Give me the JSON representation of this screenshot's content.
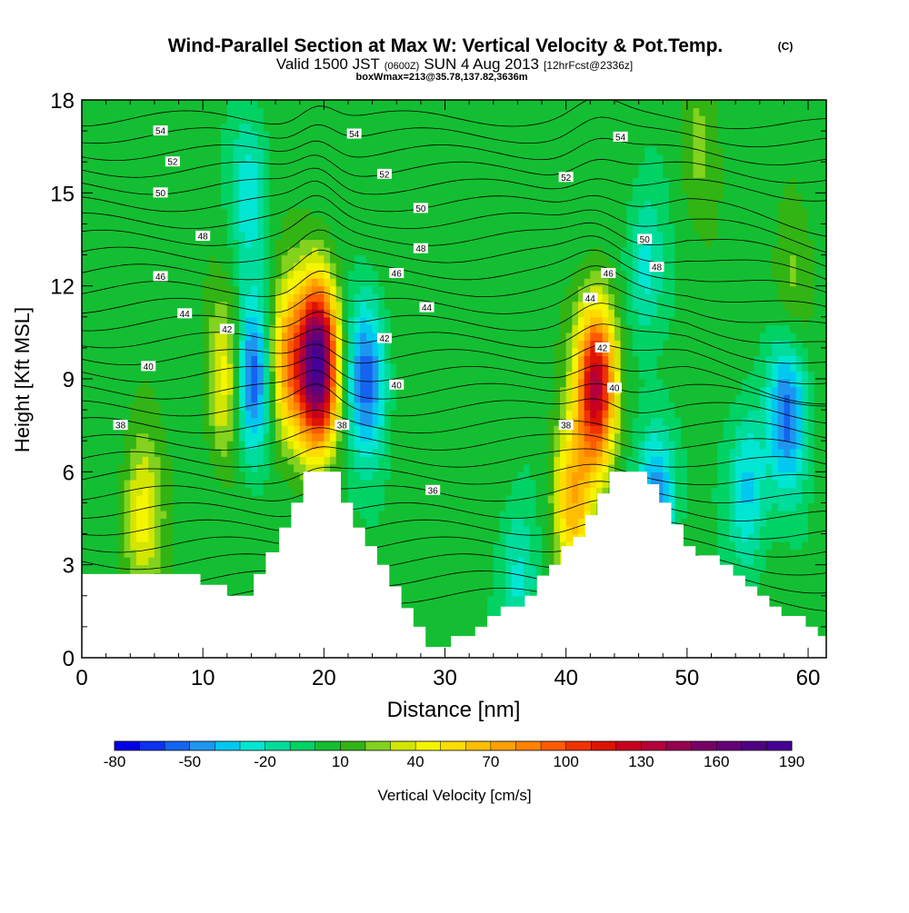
{
  "title": {
    "main": "Wind-Parallel Section at Max W: Vertical Velocity & Pot.Temp.",
    "copyright": "(C)",
    "valid_prefix": "Valid 1500 JST",
    "valid_zulu": "(0600Z)",
    "valid_date": "SUN 4 Aug 2013",
    "forecast": "[12hrFcst@2336z]",
    "boxwmax": "boxWmax=213@35.78,137.82,3636m"
  },
  "chart_data": {
    "type": "heatmap",
    "xlabel": "Distance [nm]",
    "ylabel": "Height [Kft MSL]",
    "xlim": [
      0,
      61.5
    ],
    "ylim": [
      0,
      18
    ],
    "xticks": [
      0,
      10,
      20,
      30,
      40,
      50,
      60
    ],
    "yticks": [
      0,
      3,
      6,
      9,
      12,
      15,
      18
    ],
    "field": "Vertical Velocity [cm/s]",
    "colorbar": {
      "label": "Vertical Velocity [cm/s]",
      "min": -80,
      "max": 190,
      "step": 10,
      "tick_labels": [
        "-80",
        "-50",
        "-20",
        "10",
        "40",
        "70",
        "100",
        "130",
        "160",
        "190"
      ],
      "colors": [
        "#0000e6",
        "#0a32f0",
        "#1464f0",
        "#1e96f0",
        "#00c8f0",
        "#00e6d2",
        "#00dc9b",
        "#00d264",
        "#14be32",
        "#32b414",
        "#82d21e",
        "#d2e600",
        "#f5f500",
        "#ffdc00",
        "#ffbe00",
        "#ffa000",
        "#ff8200",
        "#ff5a00",
        "#f03200",
        "#dc1400",
        "#c8001e",
        "#b4003c",
        "#960050",
        "#780064",
        "#640078",
        "#500082",
        "#460096"
      ]
    },
    "background_value": 5,
    "updrafts": [
      {
        "x": 19.5,
        "y": 9.5,
        "peak": 175
      },
      {
        "x": 17.0,
        "y": 9.5,
        "peak": 70
      },
      {
        "x": 12.0,
        "y": 9.0,
        "peak": 45
      },
      {
        "x": 42.5,
        "y": 8.8,
        "peak": 130
      },
      {
        "x": 40.5,
        "y": 5.0,
        "peak": 60
      },
      {
        "x": 5.0,
        "y": 4.5,
        "peak": 40
      },
      {
        "x": 58.5,
        "y": 11.5,
        "peak": 20
      },
      {
        "x": 51.0,
        "y": 16.5,
        "peak": 15
      }
    ],
    "downdrafts": [
      {
        "x": 14.0,
        "y": 9.0,
        "peak": -70
      },
      {
        "x": 23.5,
        "y": 9.0,
        "peak": -60
      },
      {
        "x": 58.3,
        "y": 8.0,
        "peak": -60
      },
      {
        "x": 47.5,
        "y": 5.0,
        "peak": -55
      },
      {
        "x": 55.0,
        "y": 5.5,
        "peak": -40
      },
      {
        "x": 36.0,
        "y": 2.5,
        "peak": -30
      },
      {
        "x": 13.8,
        "y": 15.0,
        "peak": -30
      },
      {
        "x": 46.5,
        "y": 12.5,
        "peak": -30
      },
      {
        "x": 20.5,
        "y": 3.0,
        "peak": -20
      }
    ],
    "theta_contours": {
      "interval": 1,
      "labeled": [
        {
          "label": "54",
          "x": 6.5,
          "y": 17.0
        },
        {
          "label": "54",
          "x": 22.5,
          "y": 16.9
        },
        {
          "label": "54",
          "x": 44.5,
          "y": 16.8
        },
        {
          "label": "52",
          "x": 7.5,
          "y": 16.0
        },
        {
          "label": "52",
          "x": 25.0,
          "y": 15.6
        },
        {
          "label": "52",
          "x": 40.0,
          "y": 15.5
        },
        {
          "label": "50",
          "x": 6.5,
          "y": 15.0
        },
        {
          "label": "50",
          "x": 28.0,
          "y": 14.5
        },
        {
          "label": "50",
          "x": 46.5,
          "y": 13.5
        },
        {
          "label": "48",
          "x": 10.0,
          "y": 13.6
        },
        {
          "label": "48",
          "x": 28.0,
          "y": 13.2
        },
        {
          "label": "48",
          "x": 47.5,
          "y": 12.6
        },
        {
          "label": "46",
          "x": 6.5,
          "y": 12.3
        },
        {
          "label": "46",
          "x": 26.0,
          "y": 12.4
        },
        {
          "label": "46",
          "x": 43.5,
          "y": 12.4
        },
        {
          "label": "44",
          "x": 8.5,
          "y": 11.1
        },
        {
          "label": "44",
          "x": 28.5,
          "y": 11.3
        },
        {
          "label": "44",
          "x": 42.0,
          "y": 11.6
        },
        {
          "label": "42",
          "x": 12.0,
          "y": 10.6
        },
        {
          "label": "42",
          "x": 25.0,
          "y": 10.3
        },
        {
          "label": "42",
          "x": 43.0,
          "y": 10.0
        },
        {
          "label": "40",
          "x": 5.5,
          "y": 9.4
        },
        {
          "label": "40",
          "x": 26.0,
          "y": 8.8
        },
        {
          "label": "40",
          "x": 44.0,
          "y": 8.7
        },
        {
          "label": "38",
          "x": 3.2,
          "y": 7.5
        },
        {
          "label": "38",
          "x": 21.5,
          "y": 7.5
        },
        {
          "label": "38",
          "x": 40.0,
          "y": 7.5
        },
        {
          "label": "36",
          "x": 29.0,
          "y": 5.4
        }
      ]
    },
    "terrain": [
      [
        0,
        2.7
      ],
      [
        1.1,
        2.7
      ],
      [
        1.1,
        2.7
      ],
      [
        3.1,
        2.7
      ],
      [
        3.1,
        2.7
      ],
      [
        9.8,
        2.7
      ],
      [
        9.8,
        2.35
      ],
      [
        12.0,
        2.35
      ],
      [
        12.0,
        2.0
      ],
      [
        14.2,
        2.0
      ],
      [
        14.2,
        2.7
      ],
      [
        15.2,
        2.7
      ],
      [
        15.2,
        3.4
      ],
      [
        16.3,
        3.4
      ],
      [
        16.3,
        4.2
      ],
      [
        17.3,
        4.2
      ],
      [
        17.3,
        5.0
      ],
      [
        18.3,
        5.0
      ],
      [
        18.3,
        6.0
      ],
      [
        21.4,
        6.0
      ],
      [
        21.4,
        5.0
      ],
      [
        22.4,
        5.0
      ],
      [
        22.4,
        4.2
      ],
      [
        23.4,
        4.2
      ],
      [
        23.4,
        3.6
      ],
      [
        24.4,
        3.6
      ],
      [
        24.4,
        3.0
      ],
      [
        25.4,
        3.0
      ],
      [
        25.4,
        2.3
      ],
      [
        26.4,
        2.3
      ],
      [
        26.4,
        1.6
      ],
      [
        27.4,
        1.6
      ],
      [
        27.4,
        1.0
      ],
      [
        28.4,
        1.0
      ],
      [
        28.4,
        0.35
      ],
      [
        30.5,
        0.35
      ],
      [
        30.5,
        0.7
      ],
      [
        32.5,
        0.7
      ],
      [
        32.5,
        1.0
      ],
      [
        33.5,
        1.0
      ],
      [
        33.5,
        1.35
      ],
      [
        34.6,
        1.35
      ],
      [
        34.6,
        1.65
      ],
      [
        35.6,
        1.65
      ],
      [
        35.6,
        1.65
      ],
      [
        36.6,
        1.65
      ],
      [
        36.6,
        2.0
      ],
      [
        37.6,
        2.0
      ],
      [
        37.6,
        2.65
      ],
      [
        38.6,
        2.65
      ],
      [
        38.6,
        3.0
      ],
      [
        39.6,
        3.0
      ],
      [
        39.6,
        3.6
      ],
      [
        40.6,
        3.6
      ],
      [
        40.6,
        3.9
      ],
      [
        41.6,
        3.9
      ],
      [
        41.6,
        4.6
      ],
      [
        42.6,
        4.6
      ],
      [
        42.6,
        5.3
      ],
      [
        43.6,
        5.3
      ],
      [
        43.6,
        6.0
      ],
      [
        46.7,
        6.0
      ],
      [
        46.7,
        5.6
      ],
      [
        47.7,
        5.6
      ],
      [
        47.7,
        5.0
      ],
      [
        48.7,
        5.0
      ],
      [
        48.7,
        4.3
      ],
      [
        49.7,
        4.3
      ],
      [
        49.7,
        3.6
      ],
      [
        50.7,
        3.6
      ],
      [
        50.7,
        3.3
      ],
      [
        52.7,
        3.3
      ],
      [
        52.7,
        3.0
      ],
      [
        53.8,
        3.0
      ],
      [
        53.8,
        2.65
      ],
      [
        54.8,
        2.65
      ],
      [
        54.8,
        2.3
      ],
      [
        55.8,
        2.3
      ],
      [
        55.8,
        2.0
      ],
      [
        56.8,
        2.0
      ],
      [
        56.8,
        1.65
      ],
      [
        57.8,
        1.65
      ],
      [
        57.8,
        1.35
      ],
      [
        59.8,
        1.35
      ],
      [
        59.8,
        1.0
      ],
      [
        60.8,
        1.0
      ],
      [
        60.8,
        0.7
      ],
      [
        61.5,
        0.7
      ]
    ]
  }
}
